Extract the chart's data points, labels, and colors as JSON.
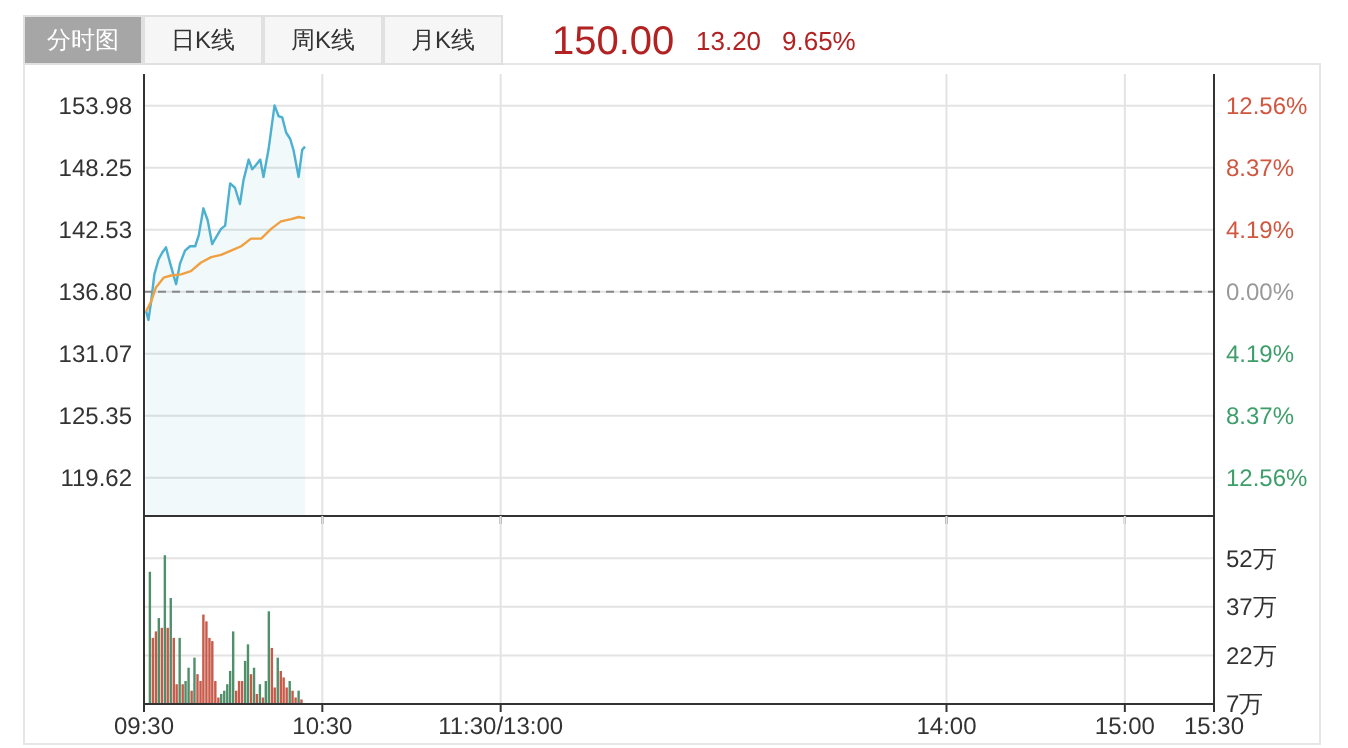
{
  "chart_data": [
    {
      "type": "line",
      "annotations": [
        "分时图",
        "日K线",
        "周K线",
        "月K线",
        "150.00",
        "13.20",
        "9.65%"
      ],
      "xlim": [
        9.5,
        15.5
      ],
      "xticks": [
        {
          "value": 9.5,
          "label": null
        },
        {
          "value": 10.5,
          "label": null
        },
        {
          "value": 11.5,
          "label": null
        },
        {
          "value": 14,
          "label": null
        },
        {
          "value": 15,
          "label": null
        },
        {
          "value": 15.5,
          "label": null
        }
      ],
      "ylim": [
        116.1,
        156.9
      ],
      "yticks": [
        153.98,
        148.25,
        142.53,
        {
          "value": 136.8,
          "label": "136.80"
        },
        131.07,
        125.35,
        119.62
      ],
      "y2lim": [
        -15.13,
        14.69
      ],
      "y2ticks": [
        {
          "value": 12.56,
          "label": "12.56%"
        },
        {
          "value": 8.37,
          "label": "8.37%"
        },
        {
          "value": 4.19,
          "label": "4.19%"
        },
        {
          "value": 0,
          "label": "0.00%"
        },
        {
          "value": -4.19,
          "label": "4.19%"
        },
        {
          "value": -8.37,
          "label": "8.37%"
        },
        {
          "value": -12.56,
          "label": "12.56%"
        }
      ],
      "tick_labels": "y",
      "grid": true,
      "marker": "none",
      "ref_lines": [
        {
          "axis": "y",
          "value": 136.8,
          "color": "#888888",
          "line_style": "dashed"
        }
      ],
      "series": [
        {
          "type": "area",
          "color": "#4cb0d0",
          "x": [
            9.512,
            9.525,
            9.54,
            9.558,
            9.582,
            9.602,
            9.623,
            9.647,
            9.68,
            9.702,
            9.73,
            9.758,
            9.787,
            9.807,
            9.833,
            9.857,
            9.882,
            9.903,
            9.932,
            9.955,
            9.983,
            10.01,
            10.038,
            10.058,
            10.087,
            10.107,
            10.128,
            10.152,
            10.17,
            10.198,
            10.232,
            10.255,
            10.275,
            10.297,
            10.32,
            10.338,
            10.367,
            10.387,
            10.403
          ],
          "values": [
            135.0,
            134.2,
            135.9,
            138.4,
            139.8,
            140.4,
            140.9,
            139.4,
            137.5,
            139.4,
            140.6,
            141.0,
            141.0,
            142.0,
            144.5,
            143.4,
            141.2,
            141.8,
            142.6,
            142.9,
            146.8,
            146.4,
            144.9,
            147.1,
            149.0,
            148.1,
            148.5,
            149.0,
            147.4,
            149.9,
            154.0,
            153.0,
            152.9,
            151.5,
            150.9,
            149.9,
            147.4,
            149.9,
            150.2
          ]
        },
        {
          "type": "line",
          "color": "#f0a040",
          "x": [
            9.512,
            9.54,
            9.567,
            9.61,
            9.652,
            9.708,
            9.763,
            9.82,
            9.877,
            9.932,
            9.988,
            10.045,
            10.1,
            10.157,
            10.213,
            10.268,
            10.325,
            10.367,
            10.403
          ],
          "values": [
            135.0,
            135.9,
            137.2,
            138.1,
            138.3,
            138.4,
            138.7,
            139.5,
            140.0,
            140.2,
            140.6,
            141.0,
            141.7,
            141.7,
            142.6,
            143.3,
            143.5,
            143.7,
            143.6
          ]
        }
      ]
    },
    {
      "type": "bar",
      "xlim": [
        9.5,
        15.5
      ],
      "xticks": [
        {
          "value": 9.5,
          "label": "09:30"
        },
        {
          "value": 10.5,
          "label": "10:30"
        },
        {
          "value": 11.5,
          "label": "11:30/13:00"
        },
        {
          "value": 14,
          "label": "14:00"
        },
        {
          "value": 15,
          "label": "15:00"
        },
        {
          "value": 15.5,
          "label": "15:30"
        }
      ],
      "ylim": [
        7,
        65
      ],
      "yticks": [
        {
          "value": 52,
          "label": "52万"
        },
        {
          "value": 37,
          "label": "37万"
        },
        {
          "value": 22,
          "label": "22万"
        },
        {
          "value": 7,
          "label": "7万"
        }
      ],
      "grid": true,
      "x": [
        9.533,
        9.55,
        9.567,
        9.583,
        9.6,
        9.617,
        9.633,
        9.65,
        9.667,
        9.683,
        9.7,
        9.717,
        9.733,
        9.75,
        9.767,
        9.783,
        9.8,
        9.817,
        9.833,
        9.85,
        9.867,
        9.883,
        9.9,
        9.917,
        9.933,
        9.95,
        9.967,
        9.983,
        10,
        10.017,
        10.033,
        10.05,
        10.067,
        10.083,
        10.1,
        10.117,
        10.133,
        10.15,
        10.167,
        10.183,
        10.2,
        10.217,
        10.233,
        10.25,
        10.267,
        10.283,
        10.3,
        10.317,
        10.333,
        10.35,
        10.367,
        10.383
      ],
      "values": [
        47.8,
        27.4,
        29.4,
        33.5,
        30.5,
        52.9,
        30.5,
        39.7,
        27.4,
        13.1,
        27.4,
        13.1,
        14.1,
        18.2,
        11.1,
        21.3,
        16.2,
        14.1,
        34.6,
        32.5,
        27.4,
        26.4,
        14.1,
        9.0,
        10.1,
        11.1,
        13.1,
        17.2,
        29.4,
        11.1,
        14.1,
        14.1,
        20.3,
        25.4,
        16.2,
        18.2,
        10.1,
        13.1,
        9.0,
        14.1,
        35.6,
        24.3,
        12.1,
        21.3,
        17.2,
        15.2,
        12.1,
        14.1,
        11.1,
        9.0,
        11.1,
        8.4
      ],
      "colors": [
        "#4f8f6a",
        "#c85a4a",
        "#c85a4a",
        "#4f8f6a",
        "#c85a4a",
        "#4f8f6a",
        "#c85a4a",
        "#4f8f6a",
        "#c85a4a",
        "#c85a4a",
        "#4f8f6a",
        "#c85a4a",
        "#4f8f6a",
        "#4f8f6a",
        "#c85a4a",
        "#4f8f6a",
        "#c85a4a",
        "#c85a4a",
        "#c85a4a",
        "#c85a4a",
        "#c85a4a",
        "#c85a4a",
        "#c85a4a",
        "#c85a4a",
        "#4f8f6a",
        "#4f8f6a",
        "#4f8f6a",
        "#4f8f6a",
        "#4f8f6a",
        "#c85a4a",
        "#c85a4a",
        "#c85a4a",
        "#4f8f6a",
        "#4f8f6a",
        "#c85a4a",
        "#4f8f6a",
        "#c85a4a",
        "#4f8f6a",
        "#c85a4a",
        "#4f8f6a",
        "#4f8f6a",
        "#c85a4a",
        "#c85a4a",
        "#4f8f6a",
        "#c85a4a",
        "#c85a4a",
        "#c85a4a",
        "#4f8f6a",
        "#c85a4a",
        "#c85a4a",
        "#4f8f6a",
        "#c85a4a"
      ]
    }
  ]
}
